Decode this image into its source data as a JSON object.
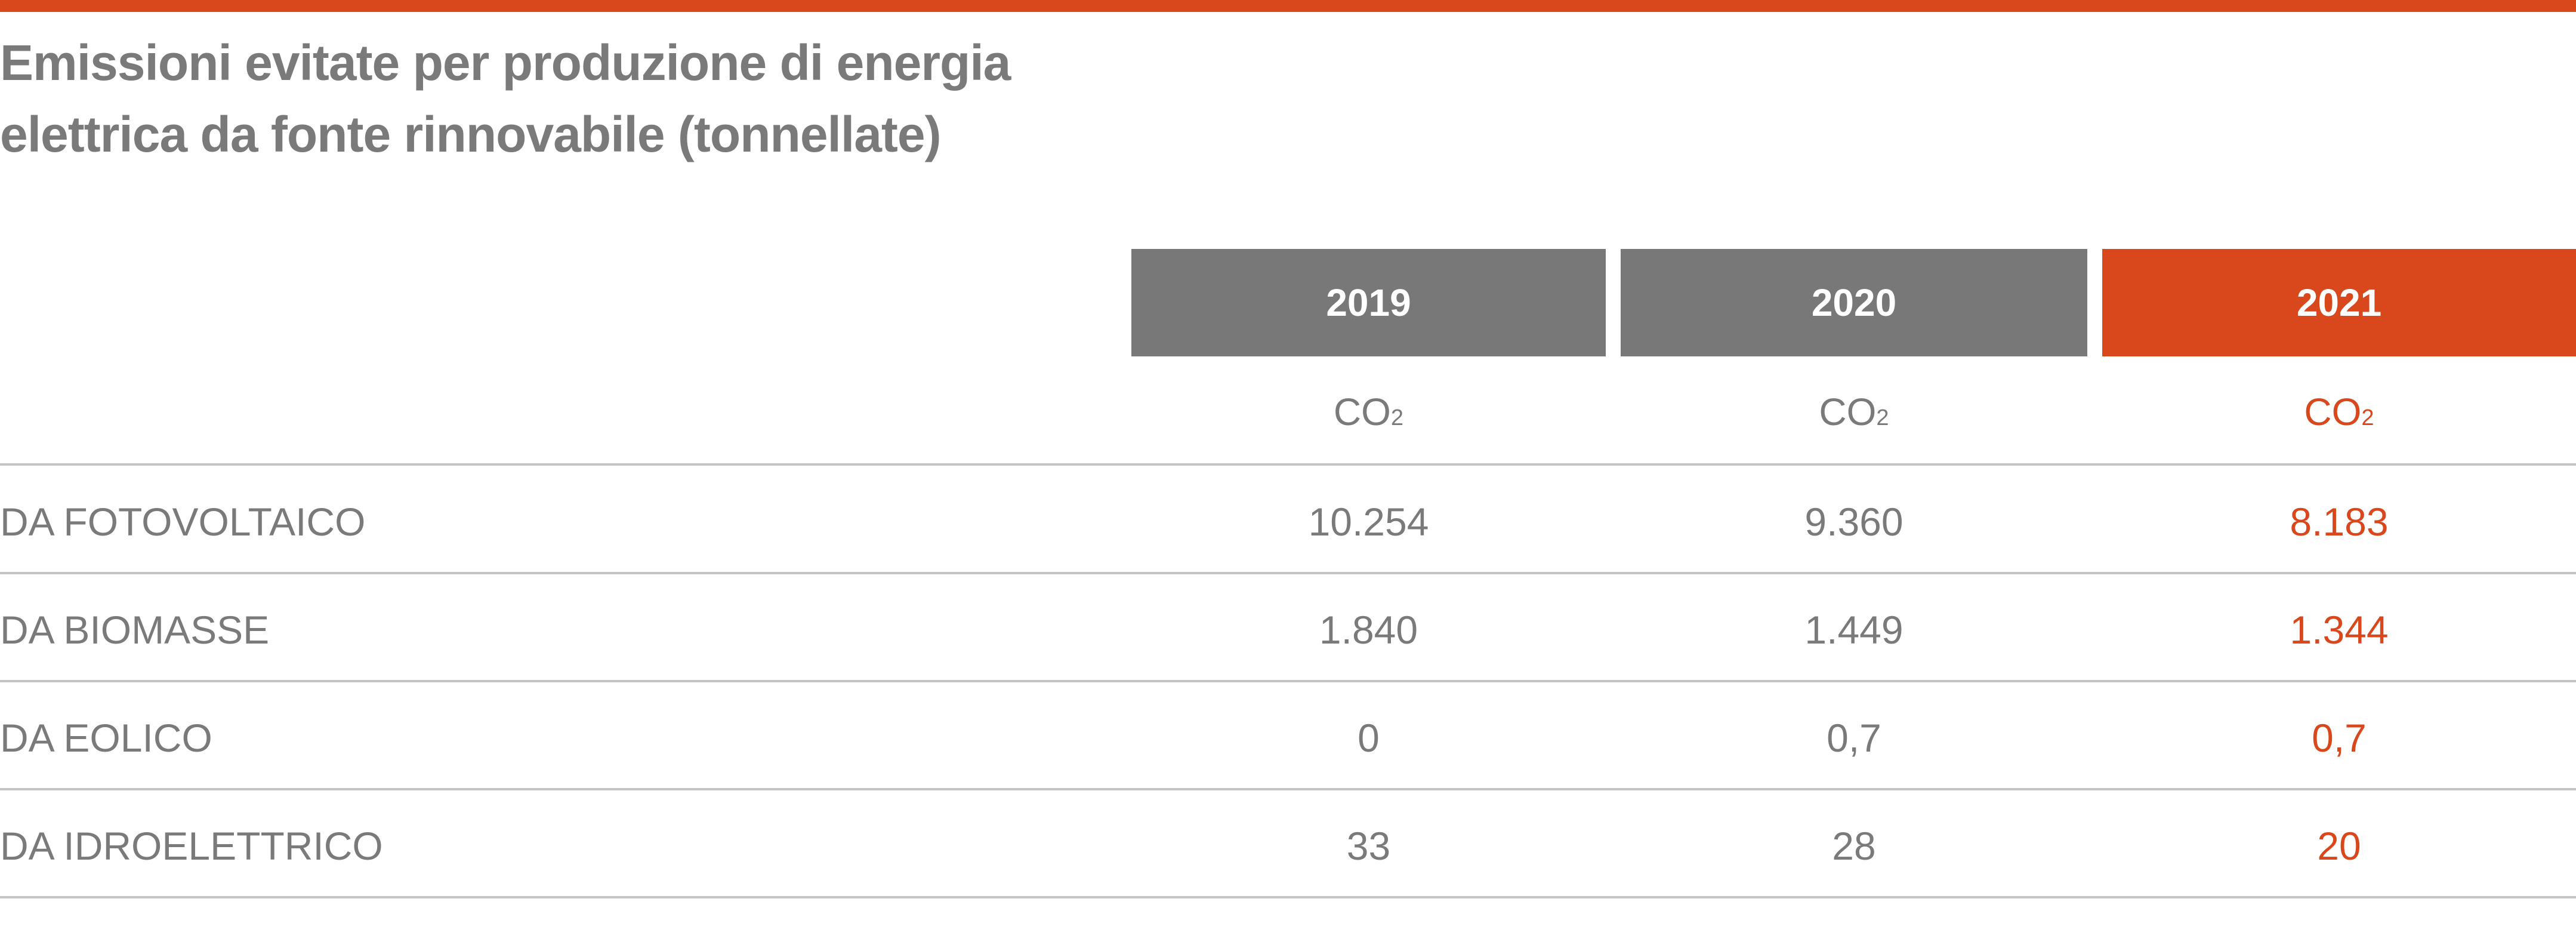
{
  "title": {
    "line1": "Emissioni evitate per produzione di energia",
    "line2": "elettrica da fonte rinnovabile (tonnellate)"
  },
  "colors": {
    "accent": "#d9481c",
    "header_gray": "#787879",
    "text_gray": "#7a7a7b",
    "rule_gray": "#c4c4c5"
  },
  "table": {
    "years": [
      "2019",
      "2020",
      "2021"
    ],
    "unit": {
      "base": "CO",
      "subscript": "2"
    },
    "rows": [
      {
        "label": "DA FOTOVOLTAICO",
        "values": [
          "10.254",
          "9.360",
          "8.183"
        ]
      },
      {
        "label": "DA BIOMASSE",
        "values": [
          "1.840",
          "1.449",
          "1.344"
        ]
      },
      {
        "label": "DA EOLICO",
        "values": [
          "0",
          "0,7",
          "0,7"
        ]
      },
      {
        "label": "DA IDROELETTRICO",
        "values": [
          "33",
          "28",
          "20"
        ]
      }
    ]
  }
}
